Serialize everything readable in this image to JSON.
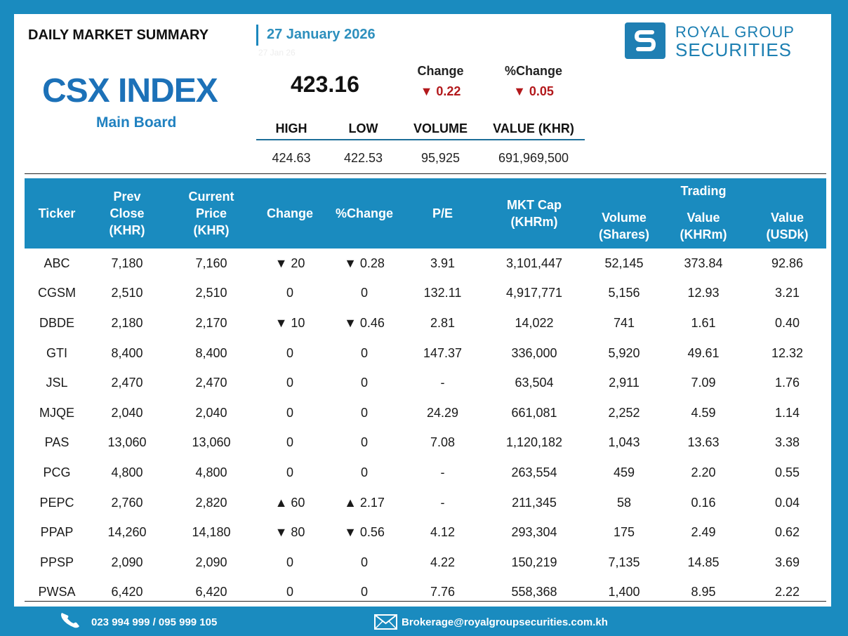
{
  "header": {
    "title": "DAILY MARKET SUMMARY",
    "date": "27 January 2026",
    "date_shadow": "27 Jan 26"
  },
  "logo": {
    "mark": "S",
    "line1": "ROYAL GROUP",
    "line2": "SECURITIES"
  },
  "index": {
    "name": "CSX INDEX",
    "board": "Main Board",
    "value": "423.16",
    "change_label": "Change",
    "change_value": "▼ 0.22",
    "pct_change_label": "%Change",
    "pct_change_value": "▼ 0.05"
  },
  "stats": {
    "headers": [
      "HIGH",
      "LOW",
      "VOLUME",
      "VALUE (KHR)"
    ],
    "values": [
      "424.63",
      "422.53",
      "95,925",
      "691,969,500"
    ]
  },
  "table": {
    "headers": {
      "ticker": "Ticker",
      "prev_close": [
        "Prev",
        "Close",
        "(KHR)"
      ],
      "current_price": [
        "Current",
        "Price",
        "(KHR)"
      ],
      "change": "Change",
      "pct_change": "%Change",
      "pe": "P/E",
      "mkt_cap": [
        "MKT Cap",
        "(KHRm)"
      ],
      "trading_group": "Trading",
      "volume": [
        "Volume",
        "(Shares)"
      ],
      "value_khr": [
        "Value",
        "(KHRm)"
      ],
      "value_usd": [
        "Value",
        "(USDk)"
      ]
    },
    "rows": [
      {
        "ticker": "ABC",
        "prev": "7,180",
        "cur": "7,160",
        "chg": "▼ 20",
        "pct": "▼ 0.28",
        "dir": "dn",
        "pe": "3.91",
        "cap": "3,101,447",
        "vol": "52,145",
        "vk": "373.84",
        "vu": "92.86"
      },
      {
        "ticker": "CGSM",
        "prev": "2,510",
        "cur": "2,510",
        "chg": "0",
        "pct": "0",
        "dir": "",
        "pe": "132.11",
        "cap": "4,917,771",
        "vol": "5,156",
        "vk": "12.93",
        "vu": "3.21"
      },
      {
        "ticker": "DBDE",
        "prev": "2,180",
        "cur": "2,170",
        "chg": "▼ 10",
        "pct": "▼ 0.46",
        "dir": "dn",
        "pe": "2.81",
        "cap": "14,022",
        "vol": "741",
        "vk": "1.61",
        "vu": "0.40"
      },
      {
        "ticker": "GTI",
        "prev": "8,400",
        "cur": "8,400",
        "chg": "0",
        "pct": "0",
        "dir": "",
        "pe": "147.37",
        "cap": "336,000",
        "vol": "5,920",
        "vk": "49.61",
        "vu": "12.32"
      },
      {
        "ticker": "JSL",
        "prev": "2,470",
        "cur": "2,470",
        "chg": "0",
        "pct": "0",
        "dir": "",
        "pe": "-",
        "cap": "63,504",
        "vol": "2,911",
        "vk": "7.09",
        "vu": "1.76"
      },
      {
        "ticker": "MJQE",
        "prev": "2,040",
        "cur": "2,040",
        "chg": "0",
        "pct": "0",
        "dir": "",
        "pe": "24.29",
        "cap": "661,081",
        "vol": "2,252",
        "vk": "4.59",
        "vu": "1.14"
      },
      {
        "ticker": "PAS",
        "prev": "13,060",
        "cur": "13,060",
        "chg": "0",
        "pct": "0",
        "dir": "",
        "pe": "7.08",
        "cap": "1,120,182",
        "vol": "1,043",
        "vk": "13.63",
        "vu": "3.38"
      },
      {
        "ticker": "PCG",
        "prev": "4,800",
        "cur": "4,800",
        "chg": "0",
        "pct": "0",
        "dir": "",
        "pe": "-",
        "cap": "263,554",
        "vol": "459",
        "vk": "2.20",
        "vu": "0.55"
      },
      {
        "ticker": "PEPC",
        "prev": "2,760",
        "cur": "2,820",
        "chg": "▲ 60",
        "pct": "▲ 2.17",
        "dir": "up",
        "pe": "-",
        "cap": "211,345",
        "vol": "58",
        "vk": "0.16",
        "vu": "0.04"
      },
      {
        "ticker": "PPAP",
        "prev": "14,260",
        "cur": "14,180",
        "chg": "▼ 80",
        "pct": "▼ 0.56",
        "dir": "dn",
        "pe": "4.12",
        "cap": "293,304",
        "vol": "175",
        "vk": "2.49",
        "vu": "0.62"
      },
      {
        "ticker": "PPSP",
        "prev": "2,090",
        "cur": "2,090",
        "chg": "0",
        "pct": "0",
        "dir": "",
        "pe": "4.22",
        "cap": "150,219",
        "vol": "7,135",
        "vk": "14.85",
        "vu": "3.69"
      },
      {
        "ticker": "PWSA",
        "prev": "6,420",
        "cur": "6,420",
        "chg": "0",
        "pct": "0",
        "dir": "",
        "pe": "7.76",
        "cap": "558,368",
        "vol": "1,400",
        "vk": "8.95",
        "vu": "2.22"
      }
    ]
  },
  "footer": {
    "phone": "023 994 999 / 095 999 105",
    "email": "Brokerage@royalgroupsecurities.com.kh",
    "phone_icon": "phone-icon",
    "mail_icon": "mail-icon"
  },
  "colors": {
    "brand_blue": "#1a8bbf",
    "down_red": "#b3191c",
    "up_green": "#2f6e2d"
  }
}
